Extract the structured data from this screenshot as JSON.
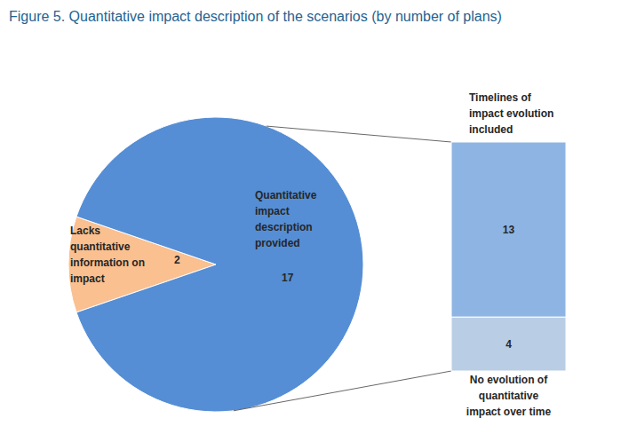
{
  "chart_data": [
    {
      "type": "pie",
      "title": "Figure 5. Quantitative impact description of the scenarios (by number of plans)",
      "categories": [
        "Lacks quantitative information on impact",
        "Quantitative impact description provided"
      ],
      "values": [
        2,
        17
      ],
      "colors": [
        "#fac090",
        "#558ed5"
      ],
      "data_labels": true
    },
    {
      "type": "bar",
      "stacked": true,
      "categories": [
        "Timelines of impact evolution included",
        "No evolution of quantitative impact over time"
      ],
      "values": [
        13,
        4
      ],
      "colors": [
        "#8eb4e3",
        "#b9cde5"
      ],
      "data_labels": true,
      "tick_labels": false
    }
  ]
}
